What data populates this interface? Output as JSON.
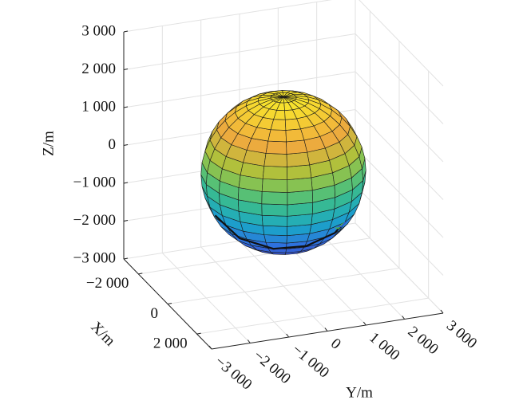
{
  "chart_data": {
    "type": "surface3d",
    "xlabel": "X/m",
    "ylabel": "Y/m",
    "zlabel": "Z/m",
    "xlim": [
      -3000,
      3000
    ],
    "ylim": [
      -3000,
      3000
    ],
    "zlim": [
      -3000,
      3000
    ],
    "xticks": [
      {
        "value": -2000,
        "label": "−2 000"
      },
      0,
      {
        "value": 2000,
        "label": "2 000"
      }
    ],
    "yticks": [
      {
        "value": -3000,
        "label": "−3 000"
      },
      {
        "value": -2000,
        "label": "−2 000"
      },
      {
        "value": -1000,
        "label": "−1 000"
      },
      0,
      {
        "value": 1000,
        "label": "1 000"
      },
      {
        "value": 2000,
        "label": "2 000"
      },
      {
        "value": 3000,
        "label": "3 000"
      }
    ],
    "zticks": [
      {
        "value": -3000,
        "label": "−3 000"
      },
      {
        "value": -2000,
        "label": "−2 000"
      },
      {
        "value": -1000,
        "label": "−1 000"
      },
      0,
      {
        "value": 1000,
        "label": "1 000"
      },
      {
        "value": 2000,
        "label": "2 000"
      },
      {
        "value": 3000,
        "label": "3 000"
      }
    ],
    "grid": true,
    "sphere": {
      "radius": 2000,
      "colormap": [
        "#3e3fb8",
        "#2f6fe0",
        "#1aa6c8",
        "#3fbf86",
        "#a6c43c",
        "#f0a93e",
        "#f8e72c"
      ]
    },
    "series": [
      {
        "color": "#111111",
        "x": [
          334,
          840,
          1319,
          1570,
          1575,
          1609
        ],
        "y": [
          -1897,
          -1454,
          -762,
          0,
          735,
          929
        ],
        "z": [
          -701,
          -1176,
          -1372,
          -1318,
          -1086,
          -866
        ]
      },
      {
        "color": "#4caf50",
        "x": [
          1700,
          1650,
          1600,
          1640,
          1700
        ],
        "y": [
          700,
          800,
          900,
          1000,
          850
        ],
        "z": [
          -900,
          -950,
          -880,
          -820,
          -860
        ]
      },
      {
        "color": "#2f55d4",
        "x": [
          1720,
          1680,
          1640,
          1660
        ],
        "y": [
          780,
          860,
          940,
          1000
        ],
        "z": [
          -860,
          -900,
          -860,
          -800
        ]
      }
    ]
  }
}
